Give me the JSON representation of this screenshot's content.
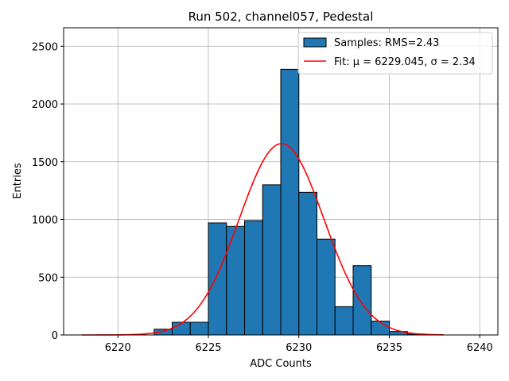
{
  "chart_data": {
    "type": "bar",
    "title": "Run 502, channel057, Pedestal",
    "xlabel": "ADC Counts",
    "ylabel": "Entries",
    "xlim": [
      6217,
      6241
    ],
    "ylim": [
      0,
      2660
    ],
    "xticks": [
      6220,
      6225,
      6230,
      6235,
      6240
    ],
    "yticks": [
      0,
      500,
      1000,
      1500,
      2000,
      2500
    ],
    "grid": true,
    "legend_position": "top-right",
    "bin_width": 1,
    "bins": [
      {
        "left": 6222,
        "value": 50
      },
      {
        "left": 6223,
        "value": 110
      },
      {
        "left": 6224,
        "value": 110
      },
      {
        "left": 6225,
        "value": 970
      },
      {
        "left": 6226,
        "value": 940
      },
      {
        "left": 6227,
        "value": 990
      },
      {
        "left": 6228,
        "value": 1300
      },
      {
        "left": 6229,
        "value": 2300
      },
      {
        "left": 6230,
        "value": 1235
      },
      {
        "left": 6231,
        "value": 830
      },
      {
        "left": 6232,
        "value": 245
      },
      {
        "left": 6233,
        "value": 600
      },
      {
        "left": 6234,
        "value": 120
      },
      {
        "left": 6235,
        "value": 30
      },
      {
        "left": 6236,
        "value": 8
      }
    ],
    "fit": {
      "mu": 6229.045,
      "sigma": 2.34,
      "amplitude": 1657,
      "x_range": [
        6218,
        6238
      ]
    },
    "series": [
      {
        "name": "Samples: RMS=2.43",
        "kind": "histogram",
        "color": "#1f77b4"
      },
      {
        "name": "Fit: μ = 6229.045, σ = 2.34",
        "kind": "line",
        "color": "#ff0000"
      }
    ]
  }
}
